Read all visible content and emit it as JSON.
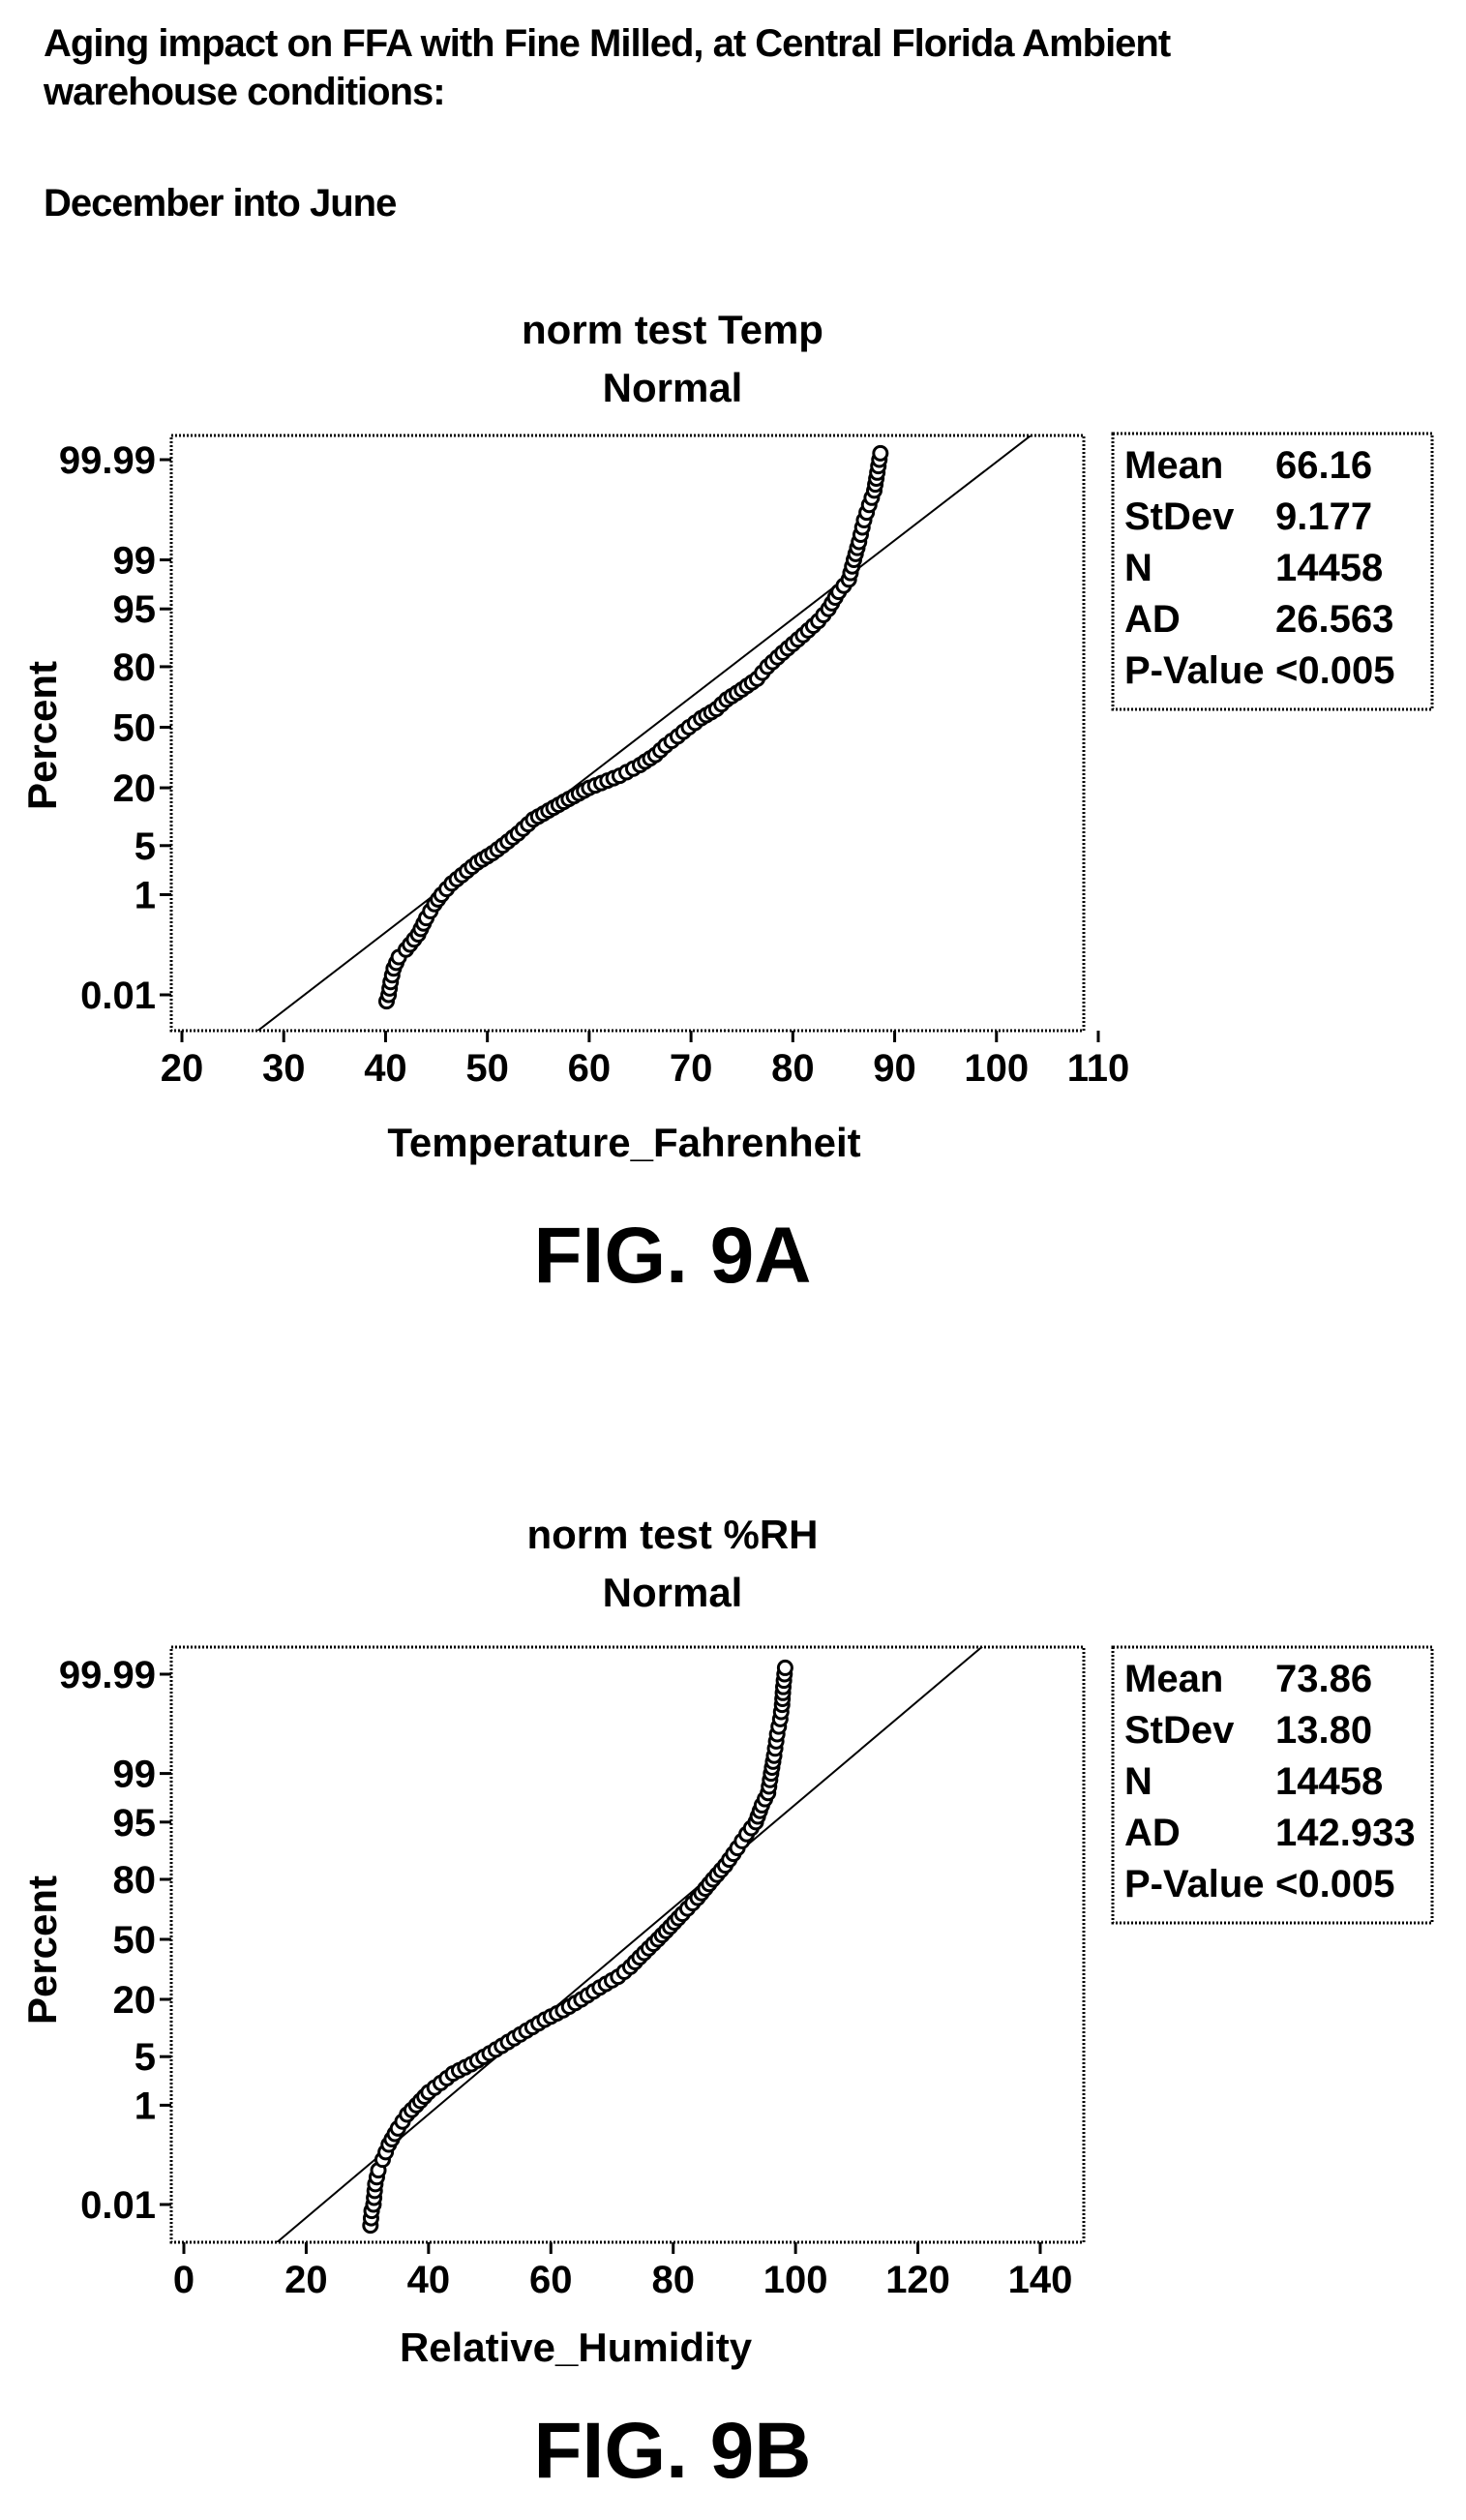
{
  "header": {
    "title_line1": "Aging impact on FFA with Fine Milled, at Central Florida Ambient",
    "title_line2": "warehouse conditions:",
    "subtitle": "December into June"
  },
  "colors": {
    "ink": "#000000",
    "background": "#ffffff",
    "fit_line": "#000000"
  },
  "chart_data": [
    {
      "type": "scatter",
      "subtype": "normal probability plot",
      "title": "norm test Temp",
      "subtitle": "Normal",
      "xlabel": "Temperature_Fahrenheit",
      "ylabel": "Percent",
      "xlim": [
        20,
        110
      ],
      "x_ticks": [
        20,
        30,
        40,
        50,
        60,
        70,
        80,
        90,
        100,
        110
      ],
      "y_ticks": [
        "0.01",
        "1",
        "5",
        "20",
        "50",
        "80",
        "95",
        "99",
        "99.99"
      ],
      "grid": false,
      "legend_position": "right",
      "stats": [
        {
          "label": "Mean",
          "value": "66.16"
        },
        {
          "label": "StDev",
          "value": "9.177"
        },
        {
          "label": "N",
          "value": "14458"
        },
        {
          "label": "AD",
          "value": "26.563"
        },
        {
          "label": "P-Value",
          "value": "<0.005"
        }
      ],
      "fit": {
        "mean": 66.16,
        "stdev": 9.177
      },
      "points": [
        [
          40.1,
          0.007
        ],
        [
          40.3,
          0.01
        ],
        [
          40.5,
          0.02
        ],
        [
          40.8,
          0.04
        ],
        [
          41.3,
          0.07
        ],
        [
          42,
          0.1
        ],
        [
          43.2,
          0.2
        ],
        [
          44,
          0.4
        ],
        [
          44.8,
          0.7
        ],
        [
          45.5,
          1
        ],
        [
          46.5,
          1.5
        ],
        [
          47.5,
          2
        ],
        [
          49,
          3
        ],
        [
          50.5,
          4
        ],
        [
          51.5,
          5
        ],
        [
          53,
          7
        ],
        [
          54.5,
          10
        ],
        [
          57.5,
          15
        ],
        [
          60,
          20
        ],
        [
          63,
          25
        ],
        [
          65,
          30
        ],
        [
          66.5,
          35
        ],
        [
          67.5,
          40
        ],
        [
          68.7,
          45
        ],
        [
          69.8,
          50
        ],
        [
          71,
          55
        ],
        [
          72.5,
          60
        ],
        [
          73.5,
          65
        ],
        [
          75,
          70
        ],
        [
          76.5,
          75
        ],
        [
          77.5,
          80
        ],
        [
          79,
          85
        ],
        [
          81,
          90
        ],
        [
          82.5,
          93
        ],
        [
          83.5,
          95
        ],
        [
          84.5,
          97
        ],
        [
          85.5,
          98
        ],
        [
          86,
          99
        ],
        [
          86.5,
          99.5
        ],
        [
          87,
          99.8
        ],
        [
          87.5,
          99.9
        ],
        [
          88,
          99.95
        ],
        [
          88.3,
          99.98
        ],
        [
          88.5,
          99.99
        ],
        [
          88.6,
          99.993
        ]
      ]
    },
    {
      "type": "scatter",
      "subtype": "normal probability plot",
      "title": "norm test %RH",
      "subtitle": "Normal",
      "xlabel": "Relative_Humidity",
      "ylabel": "Percent",
      "xlim": [
        0,
        140
      ],
      "x_ticks": [
        0,
        20,
        40,
        60,
        80,
        100,
        120,
        140
      ],
      "y_ticks": [
        "0.01",
        "1",
        "5",
        "20",
        "50",
        "80",
        "95",
        "99",
        "99.99"
      ],
      "grid": false,
      "legend_position": "right",
      "stats": [
        {
          "label": "Mean",
          "value": "73.86"
        },
        {
          "label": "StDev",
          "value": "13.80"
        },
        {
          "label": "N",
          "value": "14458"
        },
        {
          "label": "AD",
          "value": "142.933"
        },
        {
          "label": "P-Value",
          "value": "<0.005"
        }
      ],
      "fit": {
        "mean": 73.86,
        "stdev": 13.8
      },
      "points": [
        [
          30.5,
          0.003
        ],
        [
          30.7,
          0.007
        ],
        [
          31,
          0.01
        ],
        [
          31.3,
          0.03
        ],
        [
          31.8,
          0.06
        ],
        [
          32.5,
          0.1
        ],
        [
          33.5,
          0.2
        ],
        [
          35,
          0.4
        ],
        [
          36.5,
          0.7
        ],
        [
          38,
          1
        ],
        [
          40,
          1.6
        ],
        [
          42,
          2.2
        ],
        [
          44,
          3
        ],
        [
          47,
          4
        ],
        [
          50,
          5.5
        ],
        [
          53,
          7.5
        ],
        [
          56,
          10
        ],
        [
          59,
          13
        ],
        [
          62,
          16
        ],
        [
          65,
          20
        ],
        [
          68,
          25
        ],
        [
          71,
          30
        ],
        [
          73,
          35
        ],
        [
          74.5,
          40
        ],
        [
          76,
          45
        ],
        [
          77.5,
          50
        ],
        [
          79.5,
          57
        ],
        [
          81.5,
          64
        ],
        [
          84,
          72
        ],
        [
          86.5,
          80
        ],
        [
          88.5,
          85
        ],
        [
          90.5,
          90
        ],
        [
          92,
          93
        ],
        [
          93.5,
          95
        ],
        [
          94.5,
          97
        ],
        [
          95.5,
          98
        ],
        [
          96,
          99
        ],
        [
          96.5,
          99.5
        ],
        [
          97,
          99.8
        ],
        [
          97.5,
          99.9
        ],
        [
          97.8,
          99.95
        ],
        [
          98,
          99.98
        ],
        [
          98.2,
          99.99
        ],
        [
          98.3,
          99.993
        ]
      ]
    }
  ],
  "figures": [
    {
      "label": "FIG. 9A"
    },
    {
      "label": "FIG. 9B"
    }
  ]
}
